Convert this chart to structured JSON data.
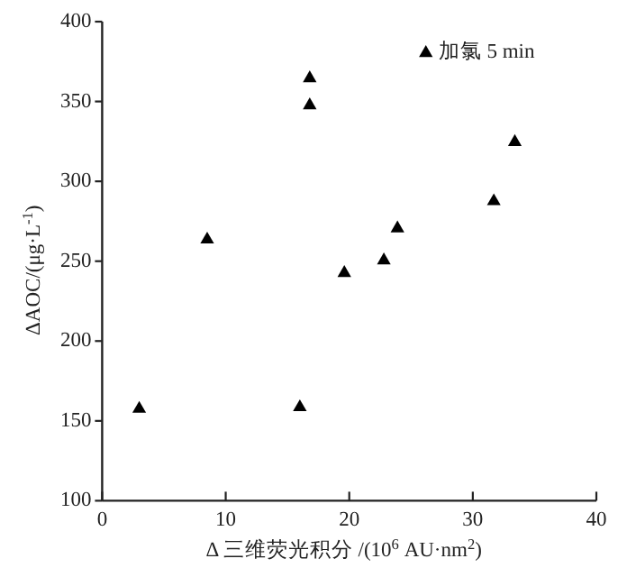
{
  "chart_data": {
    "type": "scatter",
    "xlabel": "Δ 三维荧光积分 /(10$^{6}$ AU·nm$^{2}$)",
    "ylabel": "ΔAOC/(μg·L$^{-1}$)",
    "series": [
      {
        "name": "加氯 5 min",
        "color": "#000000",
        "x": [
          3.0,
          8.5,
          16.0,
          16.8,
          16.8,
          19.6,
          22.8,
          23.9,
          31.7,
          33.4
        ],
        "values": [
          158,
          264,
          159,
          365,
          348,
          243,
          251,
          271,
          288,
          325
        ]
      }
    ],
    "xlim": [
      0,
      40
    ],
    "xticks": [
      0,
      10,
      20,
      30,
      40
    ],
    "ylim": [
      100,
      400
    ],
    "yticks": [
      100,
      150,
      200,
      250,
      300,
      350,
      400
    ],
    "marker": "triangle",
    "legend": "top right"
  }
}
